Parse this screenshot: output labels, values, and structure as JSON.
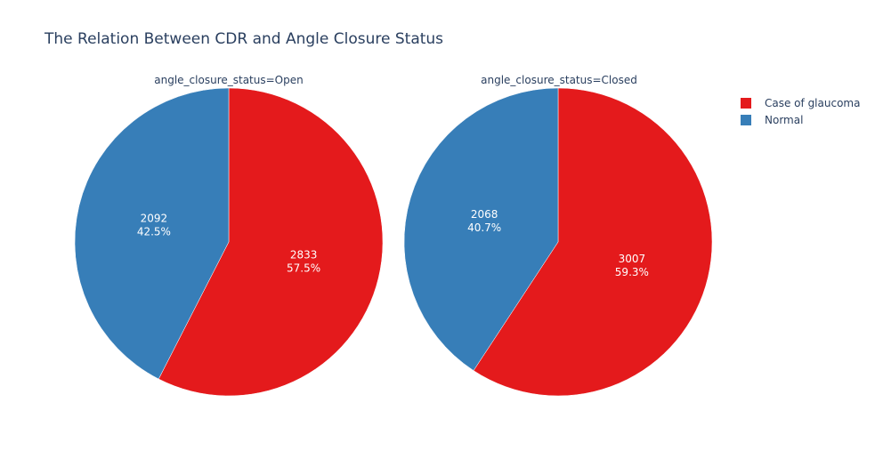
{
  "chart_data": {
    "type": "pie",
    "title": "The Relation Between CDR and Angle Closure Status",
    "legend": {
      "position": "top-right"
    },
    "series_colors": {
      "Case of glaucoma": "#e41a1c",
      "Normal": "#377eb8"
    },
    "legend_entries": [
      "Case of glaucoma",
      "Normal"
    ],
    "pies": [
      {
        "title": "angle_closure_status=Open",
        "slices": [
          {
            "label": "Case of glaucoma",
            "value": 2833,
            "percent": "57.5%"
          },
          {
            "label": "Normal",
            "value": 2092,
            "percent": "42.5%"
          }
        ]
      },
      {
        "title": "angle_closure_status=Closed",
        "slices": [
          {
            "label": "Case of glaucoma",
            "value": 3007,
            "percent": "59.3%"
          },
          {
            "label": "Normal",
            "value": 2068,
            "percent": "40.7%"
          }
        ]
      }
    ]
  }
}
